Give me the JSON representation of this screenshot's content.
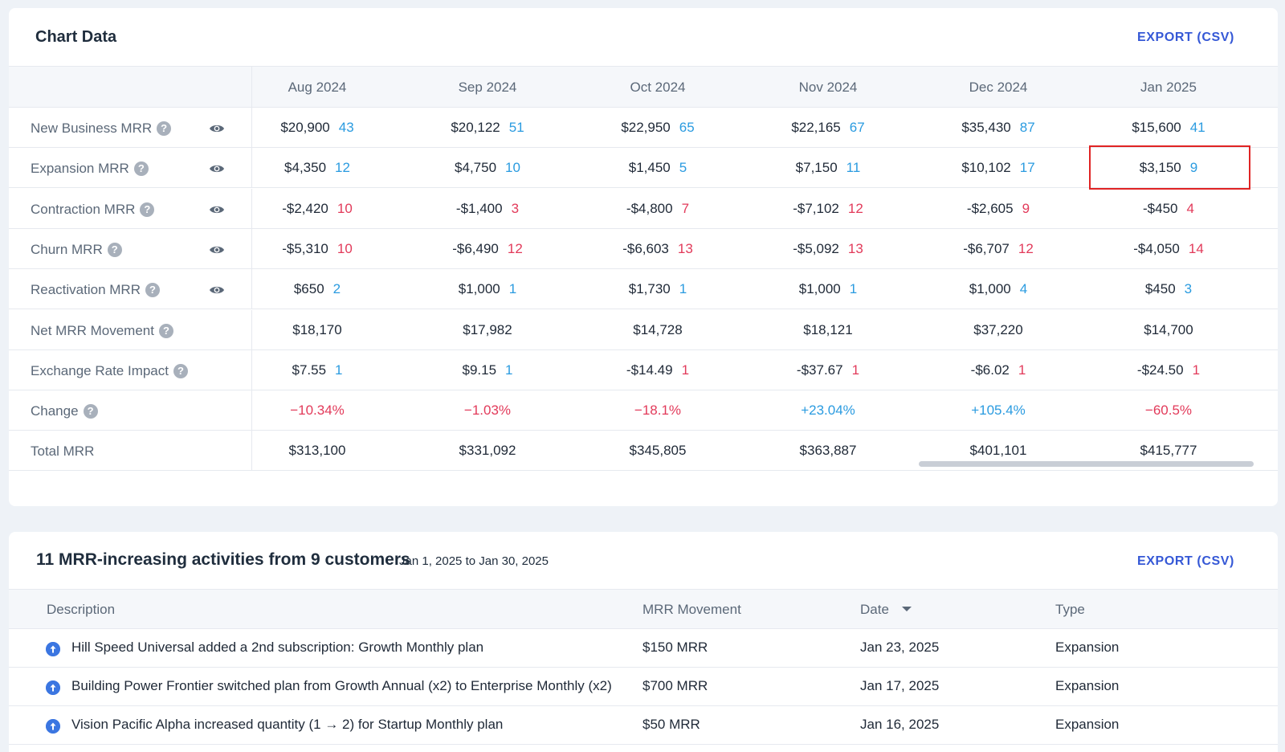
{
  "chart_card": {
    "title": "Chart Data",
    "export_label": "EXPORT (CSV)",
    "months": [
      "Aug 2024",
      "Sep 2024",
      "Oct 2024",
      "Nov 2024",
      "Dec 2024",
      "Jan 2025"
    ],
    "rows": [
      {
        "label": "New Business MRR",
        "help": "?",
        "eye": true,
        "cells": [
          {
            "v": "$20,900",
            "c": "43",
            "t": "pos"
          },
          {
            "v": "$20,122",
            "c": "51",
            "t": "pos"
          },
          {
            "v": "$22,950",
            "c": "65",
            "t": "pos"
          },
          {
            "v": "$22,165",
            "c": "67",
            "t": "pos"
          },
          {
            "v": "$35,430",
            "c": "87",
            "t": "pos"
          },
          {
            "v": "$15,600",
            "c": "41",
            "t": "pos"
          }
        ]
      },
      {
        "label": "Expansion MRR",
        "help": "?",
        "eye": true,
        "cells": [
          {
            "v": "$4,350",
            "c": "12",
            "t": "pos"
          },
          {
            "v": "$4,750",
            "c": "10",
            "t": "pos"
          },
          {
            "v": "$1,450",
            "c": "5",
            "t": "pos"
          },
          {
            "v": "$7,150",
            "c": "11",
            "t": "pos"
          },
          {
            "v": "$10,102",
            "c": "17",
            "t": "pos"
          },
          {
            "v": "$3,150",
            "c": "9",
            "t": "pos"
          }
        ]
      },
      {
        "label": "Contraction MRR",
        "help": "?",
        "eye": true,
        "cells": [
          {
            "v": "-$2,420",
            "c": "10",
            "t": "neg"
          },
          {
            "v": "-$1,400",
            "c": "3",
            "t": "neg"
          },
          {
            "v": "-$4,800",
            "c": "7",
            "t": "neg"
          },
          {
            "v": "-$7,102",
            "c": "12",
            "t": "neg"
          },
          {
            "v": "-$2,605",
            "c": "9",
            "t": "neg"
          },
          {
            "v": "-$450",
            "c": "4",
            "t": "neg"
          }
        ]
      },
      {
        "label": "Churn MRR",
        "help": "?",
        "eye": true,
        "cells": [
          {
            "v": "-$5,310",
            "c": "10",
            "t": "neg"
          },
          {
            "v": "-$6,490",
            "c": "12",
            "t": "neg"
          },
          {
            "v": "-$6,603",
            "c": "13",
            "t": "neg"
          },
          {
            "v": "-$5,092",
            "c": "13",
            "t": "neg"
          },
          {
            "v": "-$6,707",
            "c": "12",
            "t": "neg"
          },
          {
            "v": "-$4,050",
            "c": "14",
            "t": "neg"
          }
        ]
      },
      {
        "label": "Reactivation MRR",
        "help": "?",
        "eye": true,
        "cells": [
          {
            "v": "$650",
            "c": "2",
            "t": "pos"
          },
          {
            "v": "$1,000",
            "c": "1",
            "t": "pos"
          },
          {
            "v": "$1,730",
            "c": "1",
            "t": "pos"
          },
          {
            "v": "$1,000",
            "c": "1",
            "t": "pos"
          },
          {
            "v": "$1,000",
            "c": "4",
            "t": "pos"
          },
          {
            "v": "$450",
            "c": "3",
            "t": "pos"
          }
        ]
      },
      {
        "label": "Net MRR Movement",
        "help": "?",
        "eye": false,
        "cells": [
          {
            "v": "$18,170"
          },
          {
            "v": "$17,982"
          },
          {
            "v": "$14,728"
          },
          {
            "v": "$18,121"
          },
          {
            "v": "$37,220"
          },
          {
            "v": "$14,700"
          }
        ]
      },
      {
        "label": "Exchange Rate Impact",
        "help": "?",
        "eye": false,
        "cells": [
          {
            "v": "$7.55",
            "c": "1",
            "t": "pos"
          },
          {
            "v": "$9.15",
            "c": "1",
            "t": "pos"
          },
          {
            "v": "-$14.49",
            "c": "1",
            "t": "neg"
          },
          {
            "v": "-$37.67",
            "c": "1",
            "t": "neg"
          },
          {
            "v": "-$6.02",
            "c": "1",
            "t": "neg"
          },
          {
            "v": "-$24.50",
            "c": "1",
            "t": "neg"
          }
        ]
      },
      {
        "label": "Change",
        "help": "?",
        "eye": false,
        "cells": [
          {
            "v": "−10.34%",
            "vt": "neg"
          },
          {
            "v": "−1.03%",
            "vt": "neg"
          },
          {
            "v": "−18.1%",
            "vt": "neg"
          },
          {
            "v": "+23.04%",
            "vt": "pos"
          },
          {
            "v": "+105.4%",
            "vt": "pos"
          },
          {
            "v": "−60.5%",
            "vt": "neg"
          }
        ]
      },
      {
        "label": "Total MRR",
        "help": "",
        "eye": false,
        "cells": [
          {
            "v": "$313,100"
          },
          {
            "v": "$331,092"
          },
          {
            "v": "$345,805"
          },
          {
            "v": "$363,887"
          },
          {
            "v": "$401,101"
          },
          {
            "v": "$415,777"
          }
        ]
      }
    ]
  },
  "activities_card": {
    "title": "11 MRR-increasing activities from 9 customers",
    "date_range": "Jan 1, 2025 to Jan 30, 2025",
    "export_label": "EXPORT (CSV)",
    "columns": {
      "description": "Description",
      "movement": "MRR Movement",
      "date": "Date",
      "type": "Type"
    },
    "rows": [
      {
        "description": "Hill Speed Universal added a 2nd subscription: Growth Monthly plan",
        "movement": "$150 MRR",
        "date": "Jan 23, 2025",
        "type": "Expansion"
      },
      {
        "description": "Building Power Frontier switched plan from Growth Annual (x2) to Enterprise Monthly (x2)",
        "movement": "$700 MRR",
        "date": "Jan 17, 2025",
        "type": "Expansion"
      },
      {
        "description": "Vision Pacific Alpha increased quantity (1 → 2) for Startup Monthly plan",
        "movement": "$50 MRR",
        "date": "Jan 16, 2025",
        "type": "Expansion"
      }
    ]
  },
  "colors": {
    "positive": "#2a9be0",
    "negative": "#e23a5a",
    "accent": "#3558d6"
  }
}
